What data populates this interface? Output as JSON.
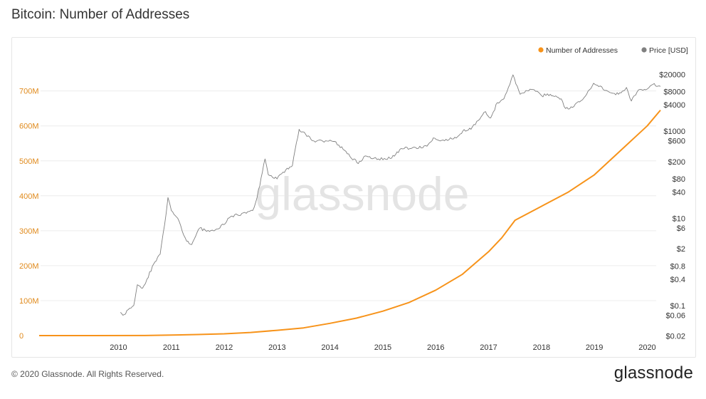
{
  "title": "Bitcoin: Number of Addresses",
  "watermark": "glassnode",
  "footer": {
    "copyright": "© 2020 Glassnode. All Rights Reserved.",
    "brand": "glassnode"
  },
  "colors": {
    "addresses": "#f7931a",
    "price": "#808080",
    "left_axis": "#e08a1c",
    "text": "#333333",
    "grid": "#ececec"
  },
  "chart_data": {
    "type": "line",
    "title": "Bitcoin: Number of Addresses",
    "legend_position": "top-right",
    "grid": true,
    "x_ticks": [
      "2010",
      "2011",
      "2012",
      "2013",
      "2014",
      "2015",
      "2016",
      "2017",
      "2018",
      "2019",
      "2020"
    ],
    "y_left": {
      "ticks": [
        0,
        100,
        200,
        300,
        400,
        500,
        600,
        700
      ],
      "tick_labels": [
        "0",
        "100M",
        "200M",
        "300M",
        "400M",
        "500M",
        "600M",
        "700M"
      ],
      "range": [
        0,
        730
      ]
    },
    "y_right": {
      "scale": "log",
      "tick_values": [
        20000,
        8000,
        4000,
        1000,
        600,
        200,
        80,
        40,
        10,
        6,
        2,
        0.8,
        0.4,
        0.1,
        0.06,
        0.02
      ],
      "tick_labels": [
        "$20000",
        "$8000",
        "$4000",
        "$1000",
        "$600",
        "$200",
        "$80",
        "$40",
        "$10",
        "$6",
        "$2",
        "$0.8",
        "$0.4",
        "$0.1",
        "$0.06",
        "$0.02"
      ]
    },
    "series": [
      {
        "name": "Number of Addresses",
        "axis": "left",
        "unit": "millions",
        "points": [
          [
            "2009-01",
            0
          ],
          [
            "2010-01",
            0.1
          ],
          [
            "2011-01",
            0.3
          ],
          [
            "2011-07",
            1.5
          ],
          [
            "2012-01",
            3
          ],
          [
            "2012-07",
            5
          ],
          [
            "2013-01",
            9
          ],
          [
            "2013-07",
            15
          ],
          [
            "2014-01",
            22
          ],
          [
            "2014-07",
            35
          ],
          [
            "2015-01",
            50
          ],
          [
            "2015-07",
            70
          ],
          [
            "2016-01",
            95
          ],
          [
            "2016-07",
            130
          ],
          [
            "2017-01",
            175
          ],
          [
            "2017-07",
            240
          ],
          [
            "2017-10",
            280
          ],
          [
            "2018-01",
            330
          ],
          [
            "2018-07",
            370
          ],
          [
            "2019-01",
            410
          ],
          [
            "2019-07",
            460
          ],
          [
            "2020-01",
            530
          ],
          [
            "2020-07",
            600
          ],
          [
            "2020-10",
            645
          ]
        ]
      },
      {
        "name": "Price [USD]",
        "axis": "right",
        "unit": "USD",
        "points": [
          [
            "2010-07-15",
            0.07
          ],
          [
            "2010-08-01",
            0.06
          ],
          [
            "2010-10-15",
            0.1
          ],
          [
            "2010-11-10",
            0.3
          ],
          [
            "2010-12-15",
            0.25
          ],
          [
            "2011-01-15",
            0.4
          ],
          [
            "2011-03-01",
            0.9
          ],
          [
            "2011-04-15",
            1.5
          ],
          [
            "2011-05-15",
            7
          ],
          [
            "2011-06-08",
            30
          ],
          [
            "2011-07-01",
            15
          ],
          [
            "2011-08-15",
            10
          ],
          [
            "2011-10-15",
            3
          ],
          [
            "2011-11-20",
            2.5
          ],
          [
            "2012-01-15",
            6
          ],
          [
            "2012-03-01",
            5
          ],
          [
            "2012-06-01",
            6
          ],
          [
            "2012-08-15",
            11
          ],
          [
            "2012-10-01",
            12
          ],
          [
            "2012-12-01",
            13
          ],
          [
            "2013-01-15",
            15
          ],
          [
            "2013-02-15",
            30
          ],
          [
            "2013-04-09",
            230
          ],
          [
            "2013-05-01",
            100
          ],
          [
            "2013-07-01",
            80
          ],
          [
            "2013-09-01",
            130
          ],
          [
            "2013-10-15",
            160
          ],
          [
            "2013-12-01",
            1100
          ],
          [
            "2014-01-15",
            850
          ],
          [
            "2014-03-01",
            600
          ],
          [
            "2014-06-01",
            600
          ],
          [
            "2014-08-01",
            580
          ],
          [
            "2014-10-01",
            380
          ],
          [
            "2015-01-14",
            180
          ],
          [
            "2015-03-01",
            270
          ],
          [
            "2015-06-01",
            230
          ],
          [
            "2015-09-01",
            240
          ],
          [
            "2015-11-05",
            400
          ],
          [
            "2016-01-15",
            400
          ],
          [
            "2016-05-01",
            450
          ],
          [
            "2016-06-15",
            700
          ],
          [
            "2016-09-01",
            600
          ],
          [
            "2016-12-01",
            750
          ],
          [
            "2017-01-05",
            1000
          ],
          [
            "2017-03-01",
            1100
          ],
          [
            "2017-06-10",
            2800
          ],
          [
            "2017-07-15",
            2000
          ],
          [
            "2017-09-01",
            4500
          ],
          [
            "2017-10-15",
            5500
          ],
          [
            "2017-12-17",
            19500
          ],
          [
            "2018-02-06",
            7000
          ],
          [
            "2018-03-15",
            8500
          ],
          [
            "2018-05-01",
            9000
          ],
          [
            "2018-07-01",
            6500
          ],
          [
            "2018-09-01",
            7000
          ],
          [
            "2018-11-15",
            5500
          ],
          [
            "2018-12-15",
            3300
          ],
          [
            "2019-02-01",
            3500
          ],
          [
            "2019-04-01",
            5000
          ],
          [
            "2019-06-26",
            12500
          ],
          [
            "2019-08-01",
            10500
          ],
          [
            "2019-10-01",
            8300
          ],
          [
            "2019-12-15",
            7000
          ],
          [
            "2020-02-10",
            10000
          ],
          [
            "2020-03-13",
            4900
          ],
          [
            "2020-05-01",
            8800
          ],
          [
            "2020-07-01",
            9200
          ],
          [
            "2020-08-10",
            11800
          ],
          [
            "2020-09-15",
            10800
          ],
          [
            "2020-10-01",
            10600
          ]
        ]
      }
    ]
  }
}
